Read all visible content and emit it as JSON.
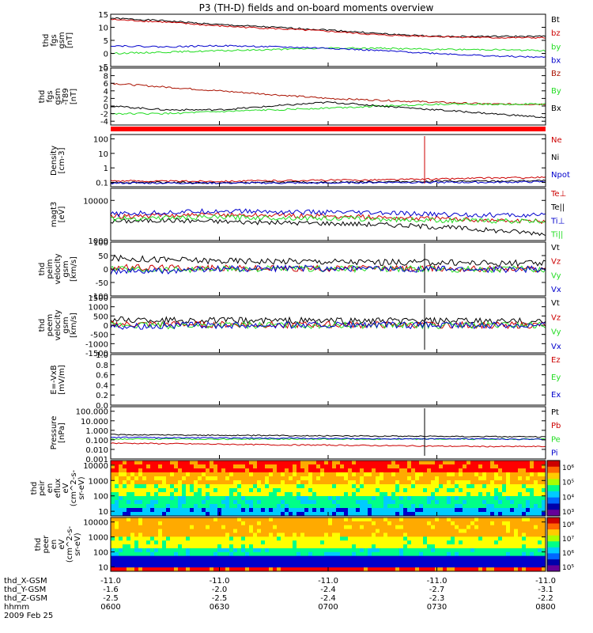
{
  "title": "P3 (TH-D) fields and on-board moments overview",
  "colors": {
    "black": "#000000",
    "red": "#cc0000",
    "green": "#22dd22",
    "blue": "#0000cc",
    "darkred": "#aa1100"
  },
  "chart_data": [
    {
      "type": "line",
      "id": "fgs",
      "ylabel_lines": [
        "thd",
        "fgs",
        "gsm",
        "[nT]"
      ],
      "ylim": [
        -5,
        15
      ],
      "yticks": [
        "15",
        "10",
        "5",
        "0",
        "-5"
      ],
      "ytick_values": [
        15,
        10,
        5,
        0,
        -5
      ],
      "series": [
        {
          "name": "Bt",
          "color": "#000000",
          "values": [
            13.5,
            12.5,
            11,
            10,
            9,
            7.5,
            6.5,
            6.5,
            6.5
          ]
        },
        {
          "name": "bz",
          "color": "#cc0000",
          "values": [
            13,
            12,
            10.5,
            9.5,
            8.5,
            7,
            6.5,
            6,
            6
          ]
        },
        {
          "name": "by",
          "color": "#22dd22",
          "values": [
            0,
            0.5,
            1,
            1.5,
            2,
            2,
            1.5,
            1.5,
            1
          ]
        },
        {
          "name": "bx",
          "color": "#0000cc",
          "values": [
            3,
            2.5,
            3,
            2.5,
            2,
            1,
            0,
            -1,
            -1.5
          ]
        }
      ]
    },
    {
      "type": "line",
      "id": "fgs_t89",
      "ylabel_lines": [
        "thd",
        "fgs",
        "gsm",
        "-T89",
        "[nT]"
      ],
      "ylim": [
        -5,
        10
      ],
      "yticks": [
        "10",
        "8",
        "6",
        "4",
        "2",
        "0",
        "-2",
        "-4"
      ],
      "ytick_values": [
        10,
        8,
        6,
        4,
        2,
        0,
        -2,
        -4
      ],
      "series": [
        {
          "name": "Bz",
          "color": "#aa1100",
          "values": [
            6,
            5,
            4,
            3,
            2,
            1.5,
            1,
            0.5,
            0.5
          ]
        },
        {
          "name": "By",
          "color": "#22dd22",
          "values": [
            -2,
            -2,
            -1.5,
            -1,
            -0.5,
            0,
            0.5,
            0.5,
            0.5
          ]
        },
        {
          "name": "Bx",
          "color": "#000000",
          "values": [
            0,
            -1,
            -1,
            0,
            1,
            0,
            -1,
            -2,
            -3
          ]
        }
      ]
    },
    {
      "type": "line",
      "id": "density",
      "log": true,
      "ylabel_lines": [
        "Density",
        "[cm-3]"
      ],
      "ylim": [
        0.05,
        200
      ],
      "yticks": [
        "100",
        "10",
        "1",
        "0.1"
      ],
      "ytick_values": [
        100,
        10,
        1,
        0.1
      ],
      "series": [
        {
          "name": "Ne",
          "color": "#cc0000",
          "values": [
            0.13,
            0.12,
            0.12,
            0.13,
            0.14,
            0.15,
            0.17,
            0.2,
            0.22
          ]
        },
        {
          "name": "Ni",
          "color": "#000000",
          "values": [
            0.1,
            0.1,
            0.09,
            0.1,
            0.1,
            0.11,
            0.12,
            0.12,
            0.13
          ]
        },
        {
          "name": "Npot",
          "color": "#0000cc",
          "values": [
            0.09,
            0.09,
            0.09,
            0.09,
            0.09,
            0.1,
            0.1,
            0.1,
            0.11
          ]
        }
      ]
    },
    {
      "type": "line",
      "id": "temp",
      "log": true,
      "ylabel_lines": [
        "magt3",
        "[eV]"
      ],
      "ylim": [
        1000,
        20000
      ],
      "yticks": [
        "10000",
        "1000"
      ],
      "ytick_values": [
        10000,
        1000
      ],
      "series": [
        {
          "name": "Te⊥",
          "color": "#cc0000",
          "values": [
            4000,
            4200,
            4400,
            4300,
            4000,
            3800,
            3500,
            3200,
            3000
          ]
        },
        {
          "name": "Te||",
          "color": "#000000",
          "values": [
            3000,
            3200,
            3000,
            2800,
            2700,
            2500,
            2200,
            1800,
            1500
          ]
        },
        {
          "name": "Ti⊥",
          "color": "#0000cc",
          "values": [
            4500,
            5000,
            5500,
            5200,
            5000,
            4800,
            4500,
            4300,
            4200
          ]
        },
        {
          "name": "Ti||",
          "color": "#22dd22",
          "values": [
            3500,
            3700,
            3800,
            3700,
            3600,
            3400,
            3200,
            3100,
            3000
          ]
        }
      ]
    },
    {
      "type": "line",
      "id": "peim_v",
      "ylabel_lines": [
        "thd",
        "peim",
        "velocity",
        "gsm",
        "[km/s]"
      ],
      "ylim": [
        -100,
        100
      ],
      "yticks": [
        "100",
        "50",
        "0",
        "-50",
        "-100"
      ],
      "ytick_values": [
        100,
        50,
        0,
        -50,
        -100
      ],
      "series": [
        {
          "name": "Vt",
          "color": "#000000",
          "values": [
            40,
            35,
            30,
            30,
            28,
            25,
            25,
            22,
            20
          ]
        },
        {
          "name": "Vz",
          "color": "#cc0000",
          "values": [
            5,
            5,
            3,
            2,
            2,
            2,
            1,
            1,
            0
          ]
        },
        {
          "name": "Vy",
          "color": "#22dd22",
          "values": [
            0,
            -2,
            0,
            0,
            1,
            0,
            0,
            -1,
            0
          ]
        },
        {
          "name": "Vx",
          "color": "#0000cc",
          "values": [
            -10,
            -8,
            0,
            2,
            3,
            0,
            0,
            -2,
            0
          ]
        }
      ]
    },
    {
      "type": "line",
      "id": "peem_v",
      "ylabel_lines": [
        "thd",
        "peem",
        "velocity",
        "gsm",
        "[km/s]"
      ],
      "ylim": [
        -1500,
        1500
      ],
      "yticks": [
        "1500",
        "1000",
        "500",
        "0",
        "-500",
        "-1000",
        "-1500"
      ],
      "ytick_values": [
        1500,
        1000,
        500,
        0,
        -500,
        -1000,
        -1500
      ],
      "series": [
        {
          "name": "Vt",
          "color": "#000000",
          "values": [
            300,
            280,
            250,
            250,
            240,
            230,
            220,
            210,
            200
          ]
        },
        {
          "name": "Vz",
          "color": "#cc0000",
          "values": [
            50,
            40,
            30,
            20,
            20,
            10,
            10,
            0,
            0
          ]
        },
        {
          "name": "Vy",
          "color": "#22dd22",
          "values": [
            0,
            -20,
            0,
            10,
            0,
            0,
            -10,
            0,
            0
          ]
        },
        {
          "name": "Vx",
          "color": "#0000cc",
          "values": [
            -50,
            -30,
            0,
            10,
            0,
            0,
            -10,
            0,
            0
          ]
        }
      ]
    },
    {
      "type": "line",
      "id": "exb",
      "ylabel_lines": [
        "E=-VxB",
        "[mV/m]"
      ],
      "ylim": [
        0,
        1
      ],
      "yticks": [
        "1.0",
        "0.8",
        "0.6",
        "0.4",
        "0.2",
        "0.0"
      ],
      "ytick_values": [
        1,
        0.8,
        0.6,
        0.4,
        0.2,
        0
      ],
      "series": [
        {
          "name": "Ez",
          "color": "#cc0000",
          "values": []
        },
        {
          "name": "Ey",
          "color": "#22dd22",
          "values": []
        },
        {
          "name": "Ex",
          "color": "#0000cc",
          "values": []
        }
      ]
    },
    {
      "type": "line",
      "id": "pressure",
      "log": true,
      "ylabel_lines": [
        "Pressure",
        "[nPa]"
      ],
      "ylim": [
        0.001,
        300
      ],
      "yticks": [
        "100.000",
        "10.000",
        "1.000",
        "0.100",
        "0.010",
        "0.001"
      ],
      "ytick_values": [
        100,
        10,
        1,
        0.1,
        0.01,
        0.001
      ],
      "series": [
        {
          "name": "Pt",
          "color": "#000000",
          "values": [
            0.35,
            0.33,
            0.3,
            0.28,
            0.27,
            0.25,
            0.24,
            0.22,
            0.2
          ]
        },
        {
          "name": "Pb",
          "color": "#cc0000",
          "values": [
            0.045,
            0.04,
            0.035,
            0.03,
            0.028,
            0.025,
            0.022,
            0.02,
            0.02
          ]
        },
        {
          "name": "Pe",
          "color": "#22dd22",
          "values": [
            0.12,
            0.12,
            0.12,
            0.12,
            0.12,
            0.12,
            0.12,
            0.12,
            0.12
          ]
        },
        {
          "name": "Pi",
          "color": "#0000cc",
          "values": [
            0.18,
            0.17,
            0.16,
            0.15,
            0.14,
            0.13,
            0.13,
            0.12,
            0.11
          ]
        }
      ]
    },
    {
      "type": "heatmap",
      "id": "peir_efux",
      "ylabel_lines": [
        "thd",
        "peir",
        "en",
        "eflux",
        "eV",
        "(cm^2-s-",
        "sr-eV)"
      ],
      "ylim": [
        5,
        20000
      ],
      "yticks": [
        "10000",
        "1000",
        "100",
        "10"
      ],
      "ytick_values": [
        10000,
        1000,
        100,
        10
      ],
      "colorbar_ticks": [
        "10⁶",
        "10⁵",
        "10⁴",
        "10³"
      ]
    },
    {
      "type": "heatmap",
      "id": "peer_efux",
      "ylabel_lines": [
        "thd",
        "peer",
        "en",
        "eV",
        "(cm^2-s-",
        "sr-eV)"
      ],
      "ylim": [
        5,
        20000
      ],
      "yticks": [
        "10000",
        "1000",
        "100",
        "10"
      ],
      "ytick_values": [
        10000,
        1000,
        100,
        10
      ],
      "colorbar_ticks": [
        "10⁸",
        "10⁷",
        "10⁶",
        "10⁵"
      ]
    }
  ],
  "xaxis": {
    "rows": [
      {
        "label": "thd_X-GSM",
        "values": [
          "-11.0",
          "-11.0",
          "-11.0",
          "-11.0",
          "-11.0"
        ]
      },
      {
        "label": "thd_Y-GSM",
        "values": [
          "-1.6",
          "-2.0",
          "-2.4",
          "-2.7",
          "-3.1"
        ]
      },
      {
        "label": "thd_Z-GSM",
        "values": [
          "-2.5",
          "-2.5",
          "-2.4",
          "-2.3",
          "-2.2"
        ]
      },
      {
        "label": "hhmm",
        "values": [
          "0600",
          "0630",
          "0700",
          "0730",
          "0800"
        ]
      }
    ],
    "date": "2009 Feb 25"
  }
}
